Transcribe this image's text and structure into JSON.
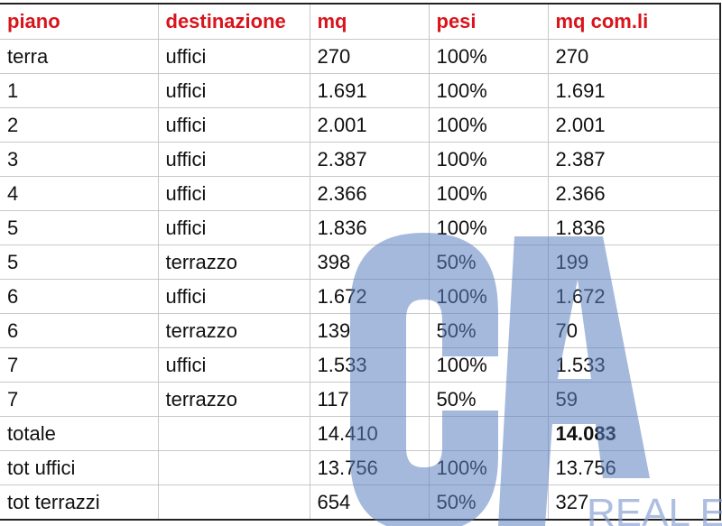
{
  "table": {
    "headers": [
      "piano",
      "destinazione",
      "mq",
      "pesi",
      "mq com.li"
    ],
    "rows": [
      [
        "terra",
        "uffici",
        "270",
        "100%",
        "270"
      ],
      [
        "1",
        "uffici",
        "1.691",
        "100%",
        "1.691"
      ],
      [
        "2",
        "uffici",
        "2.001",
        "100%",
        "2.001"
      ],
      [
        "3",
        "uffici",
        "2.387",
        "100%",
        "2.387"
      ],
      [
        "4",
        "uffici",
        "2.366",
        "100%",
        "2.366"
      ],
      [
        "5",
        "uffici",
        "1.836",
        "100%",
        "1.836"
      ],
      [
        "5",
        "terrazzo",
        "398",
        "50%",
        "199"
      ],
      [
        "6",
        "uffici",
        "1.672",
        "100%",
        "1.672"
      ],
      [
        "6",
        "terrazzo",
        "139",
        "50%",
        "70"
      ],
      [
        "7",
        "uffici",
        "1.533",
        "100%",
        "1.533"
      ],
      [
        "7",
        "terrazzo",
        "117",
        "50%",
        "59"
      ],
      [
        "totale",
        "",
        "14.410",
        "",
        "14.083"
      ],
      [
        "tot uffici",
        "",
        "13.756",
        "100%",
        "13.756"
      ],
      [
        "tot terrazzi",
        "",
        "654",
        "50%",
        "327"
      ]
    ]
  },
  "watermark": {
    "logo": "CA",
    "text": "REAL ES",
    "color": "#6f8fc8"
  },
  "colors": {
    "header_text": "#d9141c",
    "grid": "#c8c8c8"
  }
}
